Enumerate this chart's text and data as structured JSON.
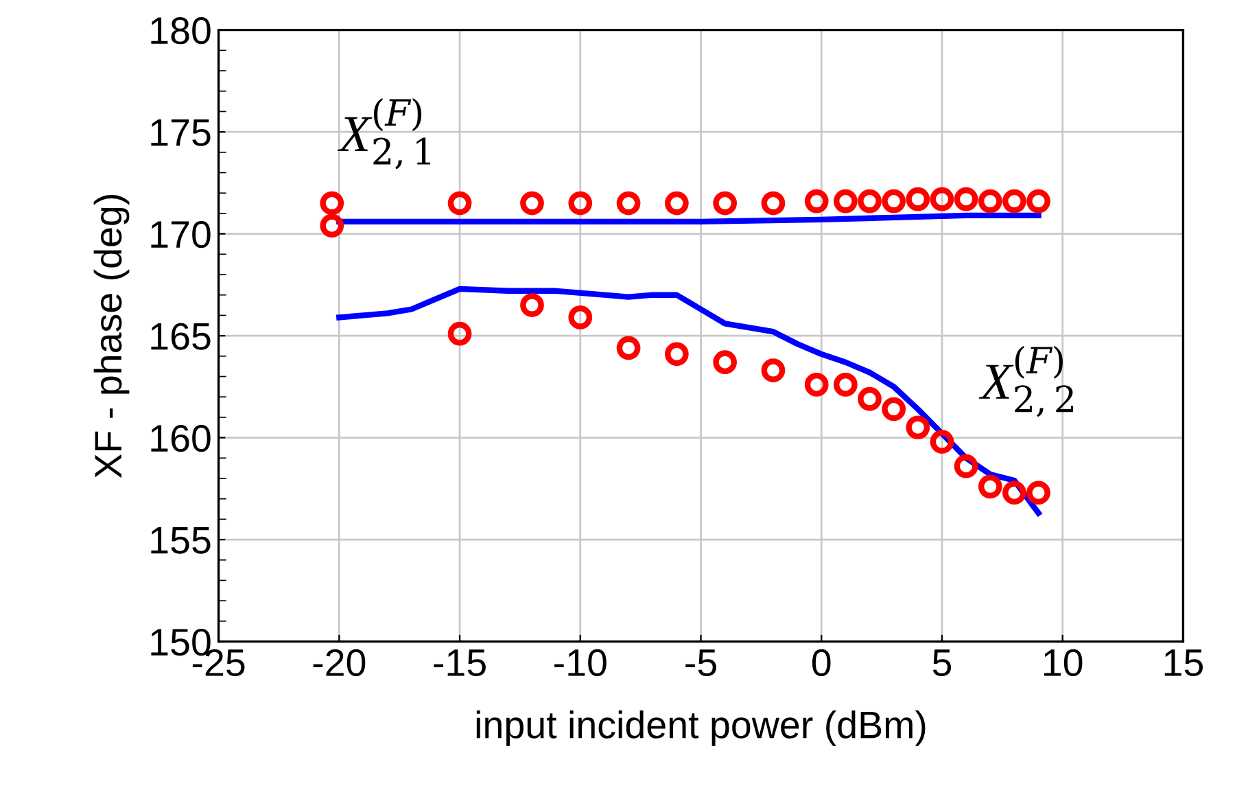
{
  "chart_data": {
    "type": "line",
    "xlabel": "input incident power (dBm)",
    "ylabel": "XF - phase (deg)",
    "xlim": [
      -25,
      15
    ],
    "xticks": [
      -25,
      -20,
      -15,
      -10,
      -5,
      0,
      5,
      10,
      15
    ],
    "ylim": [
      150,
      180
    ],
    "yticks": [
      150,
      155,
      160,
      165,
      170,
      175,
      180
    ],
    "grid": true,
    "legend": false,
    "series": [
      {
        "color": "#0000ff",
        "marker": "none",
        "line_style": "solid",
        "x": [
          -20,
          -15,
          -10,
          -5,
          0,
          3,
          6,
          9
        ],
        "values": [
          170.6,
          170.6,
          170.6,
          170.6,
          170.7,
          170.8,
          170.9,
          170.9
        ]
      },
      {
        "color": "#0000ff",
        "marker": "none",
        "line_style": "solid",
        "x": [
          -20,
          -19,
          -18,
          -17,
          -16,
          -15,
          -13,
          -11,
          -9,
          -8,
          -7,
          -6,
          -4,
          -2,
          -1,
          0,
          1,
          2,
          3,
          4,
          5,
          6,
          7,
          8,
          9
        ],
        "values": [
          165.9,
          166.0,
          166.1,
          166.3,
          166.8,
          167.3,
          167.2,
          167.2,
          167.0,
          166.9,
          167.0,
          167.0,
          165.6,
          165.2,
          164.6,
          164.1,
          163.7,
          163.2,
          162.5,
          161.4,
          160.2,
          159.0,
          158.2,
          157.9,
          156.3
        ]
      },
      {
        "type": "scatter",
        "color": "#ff0000",
        "marker": "circle",
        "x": [
          -20.3,
          -20.3,
          -15,
          -12,
          -10,
          -8,
          -6,
          -4,
          -2,
          -0.2,
          1,
          2,
          3,
          4,
          5,
          6,
          7,
          8,
          9
        ],
        "values": [
          171.5,
          170.4,
          171.5,
          171.5,
          171.5,
          171.5,
          171.5,
          171.5,
          171.5,
          171.6,
          171.6,
          171.6,
          171.6,
          171.7,
          171.7,
          171.7,
          171.6,
          171.6,
          171.6
        ]
      },
      {
        "type": "scatter",
        "color": "#ff0000",
        "marker": "circle",
        "x": [
          -15,
          -12,
          -10,
          -8,
          -6,
          -4,
          -2,
          -0.2,
          1,
          2,
          3,
          4,
          5,
          6,
          7,
          8,
          9
        ],
        "values": [
          165.1,
          166.5,
          165.9,
          164.4,
          164.1,
          163.7,
          163.3,
          162.6,
          162.6,
          161.9,
          161.4,
          160.5,
          159.8,
          158.6,
          157.6,
          157.3,
          157.3
        ]
      }
    ],
    "annotations": [
      "X$^{(F)}$$_{2,1}$",
      "X$^{(F)}$$_{2,2}$"
    ]
  }
}
